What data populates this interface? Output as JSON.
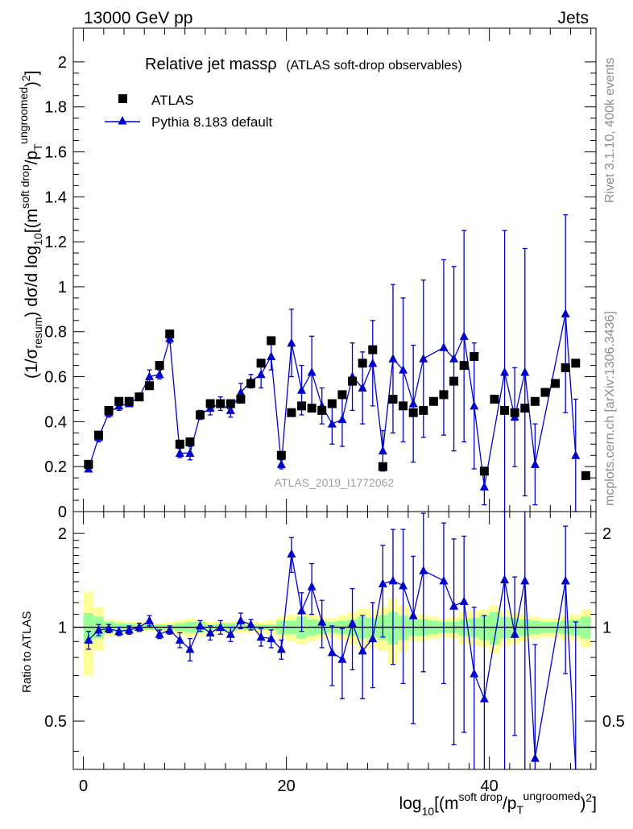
{
  "header": {
    "left": "13000 GeV pp",
    "right": "Jets"
  },
  "side": {
    "rivet": "Rivet 3.1.10,  400k events",
    "mcplots": "mcplots.cern.ch [arXiv:1306.3436]"
  },
  "colors": {
    "data": "#000000",
    "mc": "#0000cc",
    "band_inner": "#99ff99",
    "band_outer": "#ffff99"
  },
  "chart_data": [
    {
      "id": "main",
      "type": "scatter",
      "title": "Relative jet massρ",
      "subtitle": "(ATLAS soft-drop observables)",
      "ylabel": "(1/σresum) dσ/d log10[(m^soft drop/pT^ungroomed)²]",
      "watermark": "ATLAS_2019_I1772062",
      "xlim": [
        -1,
        50.5
      ],
      "ylim": [
        0,
        2.15
      ],
      "yticks": [
        0,
        0.2,
        0.4,
        0.6,
        0.8,
        1,
        1.2,
        1.4,
        1.6,
        1.8,
        2
      ],
      "ytick_labels": [
        "0",
        "0.2",
        "0.4",
        "0.6",
        "0.8",
        "1",
        "1.2",
        "1.4",
        "1.6",
        "1.8",
        "2"
      ],
      "legend": [
        "ATLAS",
        "Pythia 8.183 default"
      ],
      "series": [
        {
          "name": "ATLAS",
          "x": [
            0.5,
            1.5,
            2.5,
            3.5,
            4.5,
            5.5,
            6.5,
            7.5,
            8.5,
            9.5,
            10.5,
            11.5,
            12.5,
            13.5,
            14.5,
            15.5,
            16.5,
            17.5,
            18.5,
            19.5,
            20.5,
            21.5,
            22.5,
            23.5,
            24.5,
            25.5,
            26.5,
            27.5,
            28.5,
            29.5,
            30.5,
            31.5,
            32.5,
            33.5,
            34.5,
            35.5,
            36.5,
            37.5,
            38.5,
            39.5,
            40.5,
            41.5,
            42.5,
            43.5,
            44.5,
            45.5,
            46.5,
            47.5,
            48.5,
            49.5
          ],
          "values": [
            0.21,
            0.34,
            0.45,
            0.49,
            0.49,
            0.51,
            0.56,
            0.65,
            0.79,
            0.3,
            0.31,
            0.43,
            0.48,
            0.48,
            0.48,
            0.5,
            0.57,
            0.66,
            0.76,
            0.25,
            0.44,
            0.47,
            0.46,
            0.45,
            0.48,
            0.52,
            0.58,
            0.66,
            0.72,
            0.2,
            0.5,
            0.47,
            0.44,
            0.45,
            0.49,
            0.52,
            0.58,
            0.65,
            0.69,
            0.18,
            0.5,
            0.45,
            0.44,
            0.46,
            0.49,
            0.53,
            0.57,
            0.64,
            0.66,
            0.16
          ]
        },
        {
          "name": "Pythia 8.183 default",
          "x": [
            0.5,
            1.5,
            2.5,
            3.5,
            4.5,
            5.5,
            6.5,
            7.5,
            8.5,
            9.5,
            10.5,
            11.5,
            12.5,
            13.5,
            14.5,
            15.5,
            16.5,
            17.5,
            18.5,
            19.5,
            20.5,
            21.5,
            22.5,
            23.5,
            24.5,
            25.5,
            26.5,
            27.5,
            28.5,
            29.5,
            30.5,
            31.5,
            32.5,
            33.5,
            34.5,
            35.5,
            36.5,
            37.5,
            38.5,
            39.5,
            40.5,
            41.5,
            42.5,
            43.5,
            44.5,
            45.5,
            46.5,
            47.5,
            48.5
          ],
          "values": [
            0.19,
            0.33,
            0.44,
            0.47,
            0.48,
            0.51,
            0.6,
            0.61,
            0.77,
            0.26,
            0.26,
            0.43,
            0.46,
            0.48,
            0.45,
            0.53,
            0.58,
            0.61,
            0.69,
            0.21,
            0.75,
            0.54,
            0.62,
            0.47,
            0.39,
            0.41,
            0.6,
            0.55,
            0.66,
            0.27,
            0.68,
            0.63,
            0.48,
            0.68,
            null,
            0.73,
            0.68,
            0.78,
            0.47,
            0.11,
            null,
            0.62,
            0.42,
            0.62,
            0.21,
            null,
            null,
            0.88,
            0.25
          ],
          "errors": [
            0.01,
            0.02,
            0.02,
            0.02,
            0.01,
            0.01,
            0.03,
            0.02,
            0.02,
            0.02,
            0.03,
            0.02,
            0.03,
            0.03,
            0.03,
            0.04,
            0.03,
            0.06,
            0.06,
            0.02,
            0.15,
            0.11,
            0.16,
            0.08,
            0.09,
            0.12,
            0.15,
            0.16,
            0.19,
            0.09,
            0.33,
            0.32,
            0.26,
            0.35,
            null,
            0.39,
            0.41,
            0.47,
            0.28,
            0.08,
            null,
            0.63,
            0.22,
            0.55,
            0.18,
            null,
            null,
            0.44,
            0.25
          ]
        }
      ]
    },
    {
      "id": "ratio",
      "type": "scatter",
      "ylabel": "Ratio to ATLAS",
      "xlabel": "log10[(m^soft drop/pT^ungroomed)²]",
      "xlim": [
        -1,
        50.5
      ],
      "ylim": [
        0.35,
        2.35
      ],
      "yticks": [
        0.5,
        1,
        2
      ],
      "ytick_labels": [
        "0.5",
        "1",
        "2"
      ],
      "xticks": [
        0,
        20,
        40
      ],
      "xtick_labels": [
        "0",
        "20",
        "40"
      ],
      "bands": {
        "inner": [
          0.11,
          0.08,
          0.04,
          0.03,
          0.03,
          0.02,
          0.02,
          0.02,
          0.02,
          0.03,
          0.04,
          0.04,
          0.02,
          0.03,
          0.03,
          0.02,
          0.02,
          0.02,
          0.02,
          0.05,
          0.05,
          0.08,
          0.06,
          0.05,
          0.04,
          0.05,
          0.06,
          0.08,
          0.07,
          0.09,
          0.12,
          0.09,
          0.06,
          0.06,
          0.05,
          0.04,
          0.04,
          0.06,
          0.07,
          0.09,
          0.12,
          0.08,
          0.07,
          0.06,
          0.05,
          0.04,
          0.04,
          0.05,
          0.06,
          0.08
        ],
        "outer": [
          0.3,
          0.16,
          0.06,
          0.05,
          0.04,
          0.04,
          0.03,
          0.03,
          0.04,
          0.05,
          0.07,
          0.06,
          0.04,
          0.04,
          0.04,
          0.04,
          0.04,
          0.04,
          0.05,
          0.08,
          0.1,
          0.12,
          0.1,
          0.08,
          0.07,
          0.09,
          0.12,
          0.15,
          0.14,
          0.16,
          0.24,
          0.17,
          0.1,
          0.1,
          0.08,
          0.07,
          0.08,
          0.12,
          0.13,
          0.14,
          0.18,
          0.14,
          0.12,
          0.1,
          0.08,
          0.07,
          0.07,
          0.09,
          0.1,
          0.14
        ]
      },
      "series": [
        {
          "name": "Pythia 8.183 default / ATLAS",
          "x": [
            0.5,
            1.5,
            2.5,
            3.5,
            4.5,
            5.5,
            6.5,
            7.5,
            8.5,
            9.5,
            10.5,
            11.5,
            12.5,
            13.5,
            14.5,
            15.5,
            16.5,
            17.5,
            18.5,
            19.5,
            20.5,
            21.5,
            22.5,
            23.5,
            24.5,
            25.5,
            26.5,
            27.5,
            28.5,
            29.5,
            30.5,
            31.5,
            32.5,
            33.5,
            34.5,
            35.5,
            36.5,
            37.5,
            38.5,
            39.5,
            40.5,
            41.5,
            42.5,
            43.5,
            44.5,
            45.5,
            46.5,
            47.5,
            48.5
          ],
          "values": [
            0.91,
            0.98,
            0.99,
            0.97,
            0.98,
            1.0,
            1.05,
            0.95,
            0.98,
            0.91,
            0.85,
            1.01,
            0.96,
            1.0,
            0.95,
            1.05,
            1.02,
            0.93,
            0.92,
            0.85,
            1.72,
            1.13,
            1.35,
            1.04,
            0.83,
            0.79,
            1.03,
            0.84,
            0.92,
            1.38,
            1.41,
            1.36,
            1.09,
            1.52,
            null,
            1.41,
            1.17,
            1.21,
            0.71,
            0.59,
            null,
            1.42,
            0.95,
            1.41,
            0.38,
            null,
            null,
            1.41,
            0.34
          ],
          "errors": [
            0.06,
            0.04,
            0.03,
            0.03,
            0.03,
            0.03,
            0.04,
            0.03,
            0.03,
            0.05,
            0.07,
            0.04,
            0.05,
            0.05,
            0.05,
            0.06,
            0.04,
            0.06,
            0.06,
            0.06,
            0.22,
            0.16,
            0.25,
            0.18,
            0.18,
            0.2,
            0.3,
            0.25,
            0.28,
            0.45,
            0.65,
            0.7,
            0.6,
            0.8,
            null,
            0.75,
            0.75,
            0.75,
            0.45,
            0.5,
            null,
            1.4,
            0.5,
            1.4,
            0.5,
            null,
            null,
            0.7,
            0.7
          ]
        }
      ]
    }
  ]
}
